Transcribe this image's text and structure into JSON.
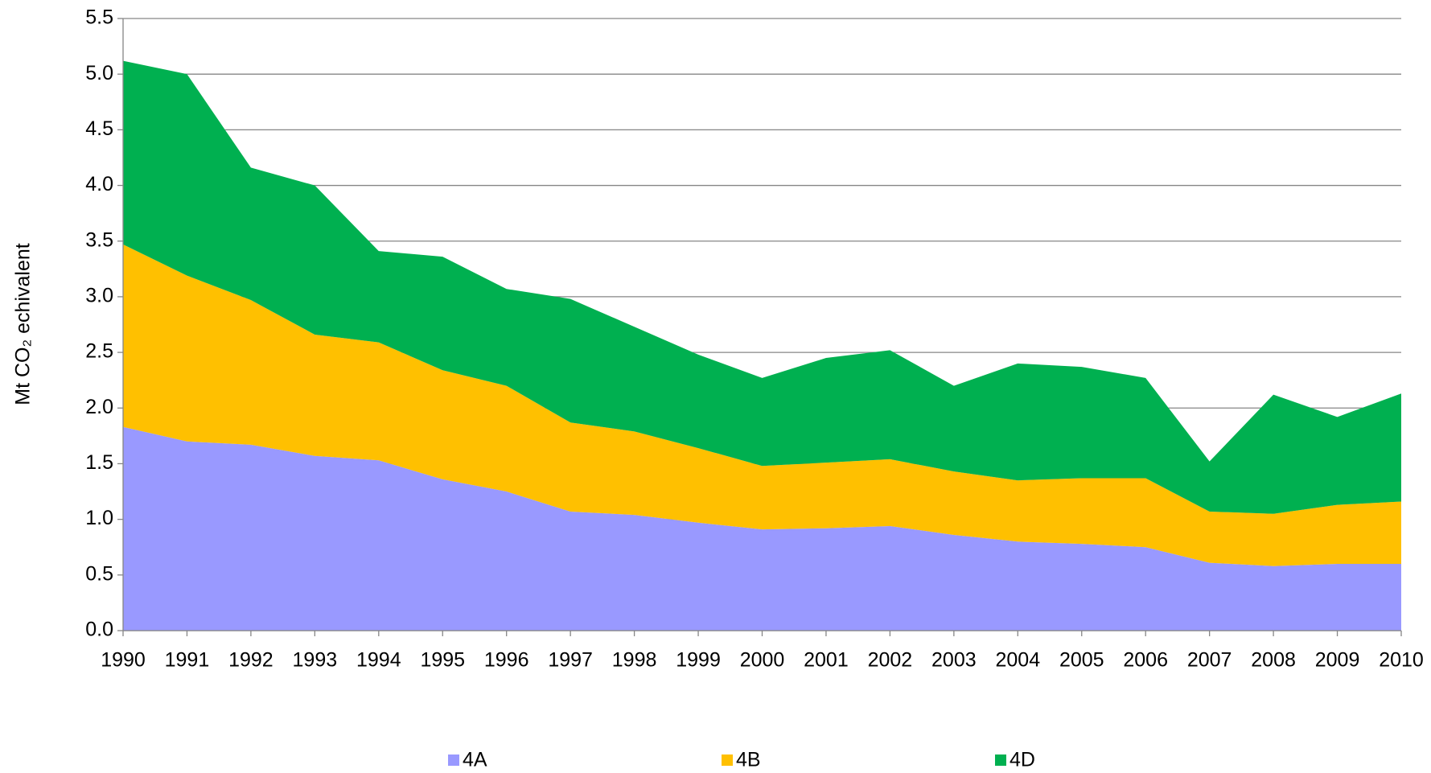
{
  "chart_data": {
    "type": "stacked_area",
    "y_label": "Mt CO₂ echivalent",
    "categories": [
      "1990",
      "1991",
      "1992",
      "1993",
      "1994",
      "1995",
      "1996",
      "1997",
      "1998",
      "1999",
      "2000",
      "2001",
      "2002",
      "2003",
      "2004",
      "2005",
      "2006",
      "2007",
      "2008",
      "2009",
      "2010"
    ],
    "series": [
      {
        "name": "4A",
        "color": "#9999ff",
        "values": [
          1.83,
          1.7,
          1.67,
          1.57,
          1.53,
          1.36,
          1.25,
          1.07,
          1.04,
          0.97,
          0.91,
          0.92,
          0.94,
          0.86,
          0.8,
          0.78,
          0.75,
          0.61,
          0.58,
          0.6,
          0.6
        ]
      },
      {
        "name": "4B",
        "color": "#ffc000",
        "values": [
          1.64,
          1.49,
          1.3,
          1.09,
          1.06,
          0.98,
          0.95,
          0.8,
          0.75,
          0.67,
          0.57,
          0.59,
          0.6,
          0.57,
          0.55,
          0.59,
          0.62,
          0.46,
          0.47,
          0.53,
          0.56
        ]
      },
      {
        "name": "4D",
        "color": "#00b050",
        "values": [
          1.65,
          1.81,
          1.19,
          1.34,
          0.82,
          1.02,
          0.87,
          1.11,
          0.94,
          0.84,
          0.79,
          0.94,
          0.98,
          0.77,
          1.05,
          1.0,
          0.9,
          0.45,
          1.07,
          0.79,
          0.97
        ]
      }
    ],
    "ylim": [
      0,
      5.5
    ],
    "yticks": [
      {
        "value": 0,
        "label": "0.0"
      },
      0.5,
      {
        "value": 1,
        "label": "1.0"
      },
      1.5,
      {
        "value": 2,
        "label": "2.0"
      },
      2.5,
      {
        "value": 3,
        "label": "3.0"
      },
      3.5,
      {
        "value": 4,
        "label": "4.0"
      },
      4.5,
      {
        "value": 5,
        "label": "5.0"
      },
      5.5
    ],
    "grid": true
  }
}
